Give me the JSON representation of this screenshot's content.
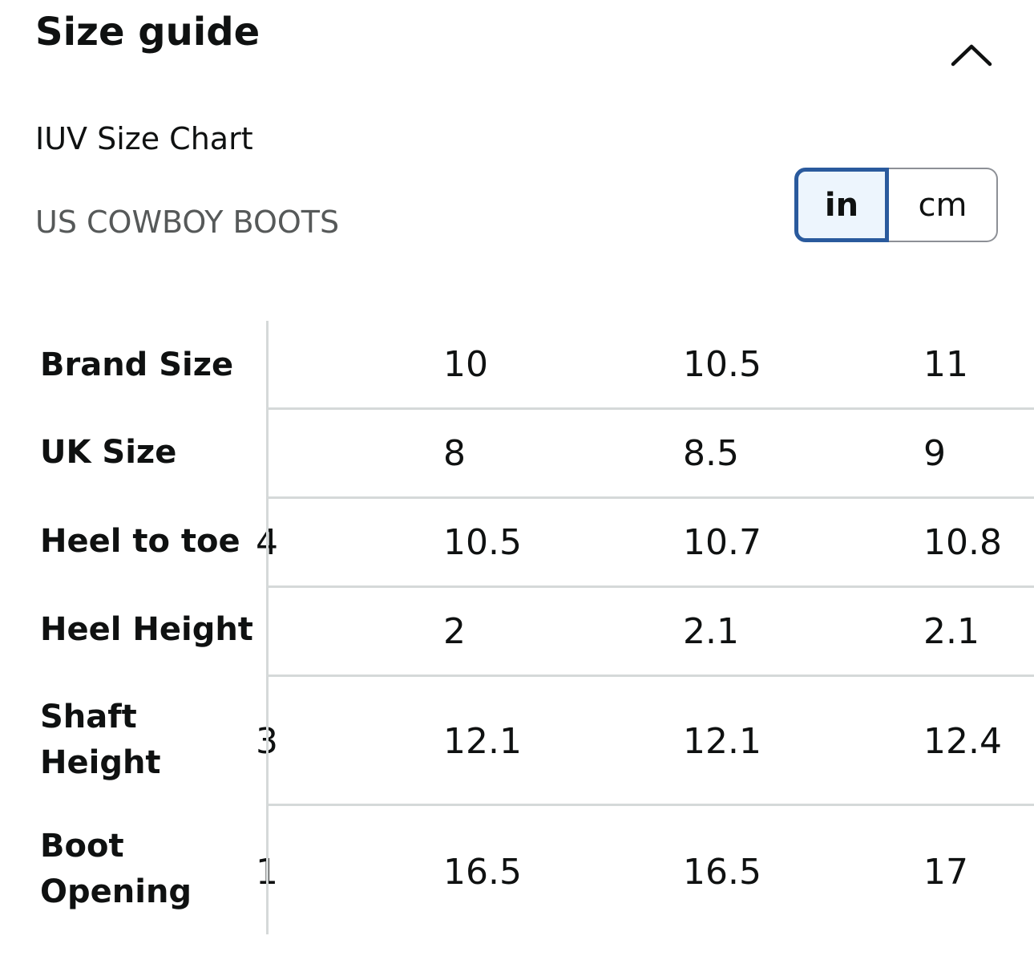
{
  "header": {
    "title": "Size guide",
    "collapse_icon": "chevron-up-icon"
  },
  "size_chart": {
    "name": "IUV Size Chart",
    "category": "US COWBOY BOOTS"
  },
  "unit_toggle": {
    "selected": "in",
    "options": [
      "in",
      "cm"
    ]
  },
  "table": {
    "rows": [
      {
        "label": "Brand Size",
        "partial": "",
        "values": [
          "10",
          "10.5",
          "11"
        ]
      },
      {
        "label": "UK Size",
        "partial": "",
        "values": [
          "8",
          "8.5",
          "9"
        ]
      },
      {
        "label": "Heel to toe",
        "partial": "4",
        "values": [
          "10.5",
          "10.7",
          "10.8"
        ]
      },
      {
        "label": "Heel Height",
        "partial": "",
        "values": [
          "2",
          "2.1",
          "2.1"
        ]
      },
      {
        "label": "Shaft Height",
        "partial": "3",
        "values": [
          "12.1",
          "12.1",
          "12.4"
        ]
      },
      {
        "label": "Boot Opening",
        "partial": "1",
        "values": [
          "16.5",
          "16.5",
          "17"
        ]
      }
    ]
  },
  "colors": {
    "text": "#0f1111",
    "muted_text": "#565959",
    "selected_border": "#2a5a9d",
    "selected_fill": "#edf5fd",
    "divider": "#d5d9d9"
  }
}
